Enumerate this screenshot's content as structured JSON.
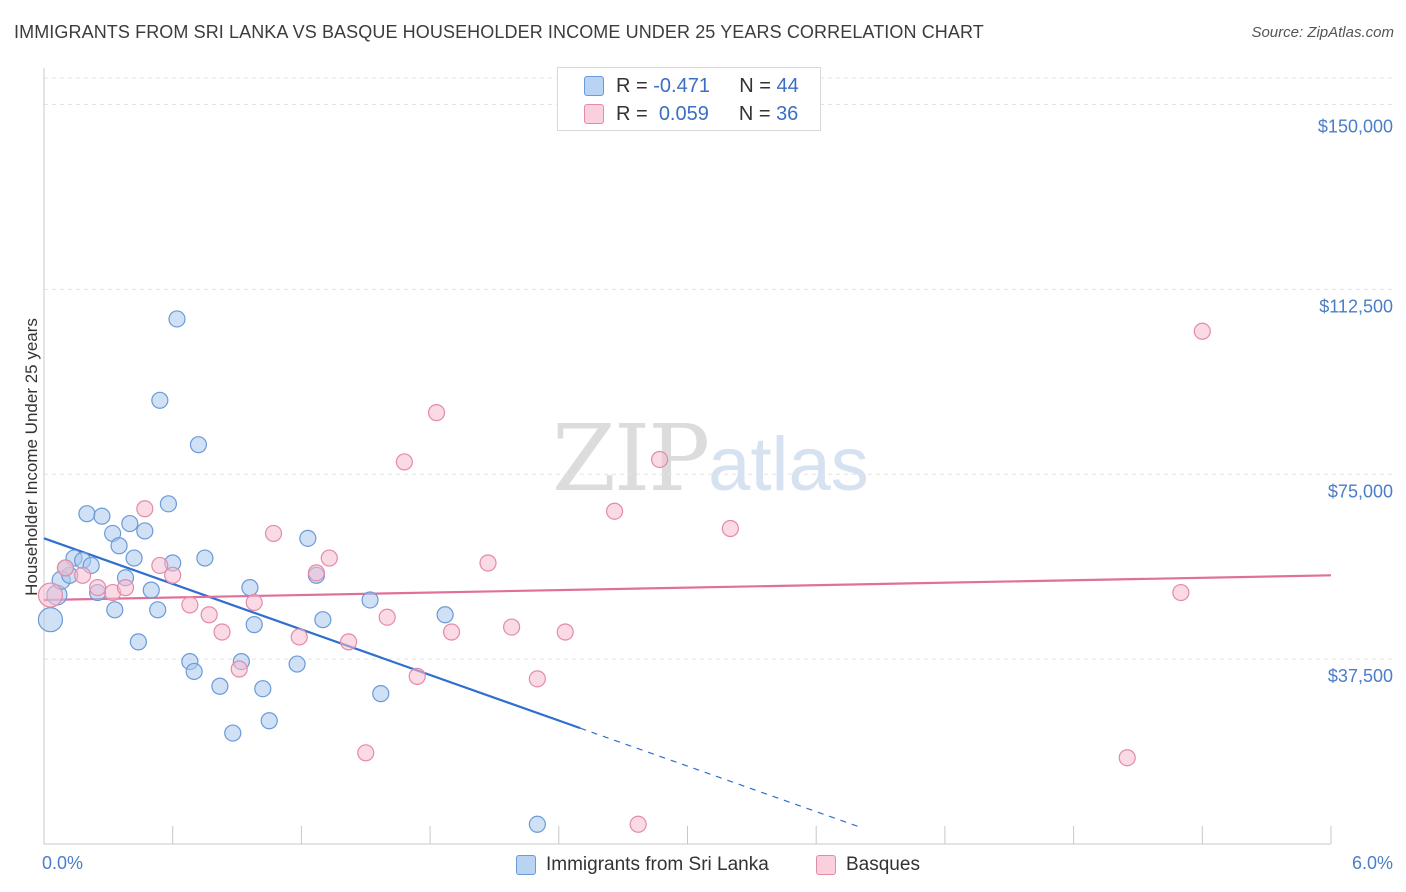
{
  "header": {
    "title": "IMMIGRANTS FROM SRI LANKA VS BASQUE HOUSEHOLDER INCOME UNDER 25 YEARS CORRELATION CHART",
    "source": "Source: ZipAtlas.com"
  },
  "watermark": {
    "zip": "ZIP",
    "atlas": "atlas"
  },
  "legend": {
    "rows": [
      {
        "r_label": "R =",
        "r_value": "-0.471",
        "n_label": "N =",
        "n_value": "44"
      },
      {
        "r_label": "R =",
        "r_value": "0.059",
        "n_label": "N =",
        "n_value": "36"
      }
    ]
  },
  "bottom_legend": {
    "series1": "Immigrants from Sri Lanka",
    "series2": "Basques"
  },
  "colors": {
    "blue_fill": "#a9c8ee",
    "blue_stroke": "#6a9ad8",
    "blue_line": "#2f6fce",
    "pink_fill": "#f6bccd",
    "pink_stroke": "#e58aa7",
    "pink_line": "#e0709a",
    "tick": "#4a7ec9",
    "grid": "#e3e3e3"
  },
  "chart_data": {
    "type": "scatter",
    "title": "IMMIGRANTS FROM SRI LANKA VS BASQUE HOUSEHOLDER INCOME UNDER 25 YEARS CORRELATION CHART",
    "xlabel": "",
    "ylabel": "Householder Income Under 25 years",
    "xlim": [
      0,
      6
    ],
    "ylim": [
      0,
      157000
    ],
    "x_tick_labels": [
      "0.0%",
      "6.0%"
    ],
    "y_ticks": [
      37500,
      75000,
      112500,
      150000
    ],
    "y_tick_labels": [
      "$37,500",
      "$75,000",
      "$112,500",
      "$150,000"
    ],
    "grid": true,
    "legend_position": "top-center",
    "series": [
      {
        "name": "Immigrants from Sri Lanka",
        "r": -0.471,
        "n": 44,
        "trend": {
          "x0": 0,
          "y0": 62000,
          "x1": 2.5,
          "y1": 23500,
          "dash_to_x": 3.8
        },
        "points": [
          [
            0.03,
            45500,
            12
          ],
          [
            0.06,
            50500,
            10
          ],
          [
            0.08,
            53500,
            9
          ],
          [
            0.12,
            54500,
            8
          ],
          [
            0.14,
            58000,
            8
          ],
          [
            0.18,
            57500,
            8
          ],
          [
            0.22,
            56500,
            8
          ],
          [
            0.2,
            67000,
            8
          ],
          [
            0.25,
            51000,
            8
          ],
          [
            0.27,
            66500,
            8
          ],
          [
            0.32,
            63000,
            8
          ],
          [
            0.33,
            47500,
            8
          ],
          [
            0.35,
            60500,
            8
          ],
          [
            0.38,
            54000,
            8
          ],
          [
            0.4,
            65000,
            8
          ],
          [
            0.42,
            58000,
            8
          ],
          [
            0.44,
            41000,
            8
          ],
          [
            0.47,
            63500,
            8
          ],
          [
            0.5,
            51500,
            8
          ],
          [
            0.53,
            47500,
            8
          ],
          [
            0.54,
            90000,
            8
          ],
          [
            0.58,
            69000,
            8
          ],
          [
            0.6,
            57000,
            8
          ],
          [
            0.62,
            106500,
            8
          ],
          [
            0.68,
            37000,
            8
          ],
          [
            0.7,
            35000,
            8
          ],
          [
            0.72,
            81000,
            8
          ],
          [
            0.75,
            58000,
            8
          ],
          [
            0.82,
            32000,
            8
          ],
          [
            0.88,
            22500,
            8
          ],
          [
            0.92,
            37000,
            8
          ],
          [
            0.96,
            52000,
            8
          ],
          [
            0.98,
            44500,
            8
          ],
          [
            1.02,
            31500,
            8
          ],
          [
            1.05,
            25000,
            8
          ],
          [
            1.18,
            36500,
            8
          ],
          [
            1.23,
            62000,
            8
          ],
          [
            1.27,
            54500,
            8
          ],
          [
            1.3,
            45500,
            8
          ],
          [
            1.52,
            49500,
            8
          ],
          [
            1.57,
            30500,
            8
          ],
          [
            1.87,
            46500,
            8
          ],
          [
            2.3,
            4000,
            8
          ],
          [
            0.1,
            56000,
            8
          ]
        ]
      },
      {
        "name": "Basques",
        "r": 0.059,
        "n": 36,
        "trend": {
          "x0": 0,
          "y0": 49500,
          "x1": 6,
          "y1": 54500
        },
        "points": [
          [
            0.03,
            50500,
            12
          ],
          [
            0.1,
            56000,
            8
          ],
          [
            0.18,
            54500,
            8
          ],
          [
            0.25,
            52000,
            8
          ],
          [
            0.32,
            51000,
            8
          ],
          [
            0.38,
            52000,
            8
          ],
          [
            0.47,
            68000,
            8
          ],
          [
            0.54,
            56500,
            8
          ],
          [
            0.6,
            54500,
            8
          ],
          [
            0.68,
            48500,
            8
          ],
          [
            0.77,
            46500,
            8
          ],
          [
            0.83,
            43000,
            8
          ],
          [
            0.91,
            35500,
            8
          ],
          [
            0.98,
            49000,
            8
          ],
          [
            1.07,
            63000,
            8
          ],
          [
            1.19,
            42000,
            8
          ],
          [
            1.27,
            55000,
            8
          ],
          [
            1.33,
            58000,
            8
          ],
          [
            1.42,
            41000,
            8
          ],
          [
            1.5,
            18500,
            8
          ],
          [
            1.6,
            46000,
            8
          ],
          [
            1.68,
            77500,
            8
          ],
          [
            1.74,
            34000,
            8
          ],
          [
            1.83,
            87500,
            8
          ],
          [
            1.9,
            43000,
            8
          ],
          [
            2.07,
            57000,
            8
          ],
          [
            2.18,
            44000,
            8
          ],
          [
            2.3,
            33500,
            8
          ],
          [
            2.43,
            43000,
            8
          ],
          [
            2.66,
            67500,
            8
          ],
          [
            2.77,
            4000,
            8
          ],
          [
            2.87,
            78000,
            8
          ],
          [
            3.2,
            64000,
            8
          ],
          [
            5.05,
            17500,
            8
          ],
          [
            5.3,
            51000,
            8
          ],
          [
            5.4,
            104000,
            8
          ]
        ]
      }
    ]
  }
}
